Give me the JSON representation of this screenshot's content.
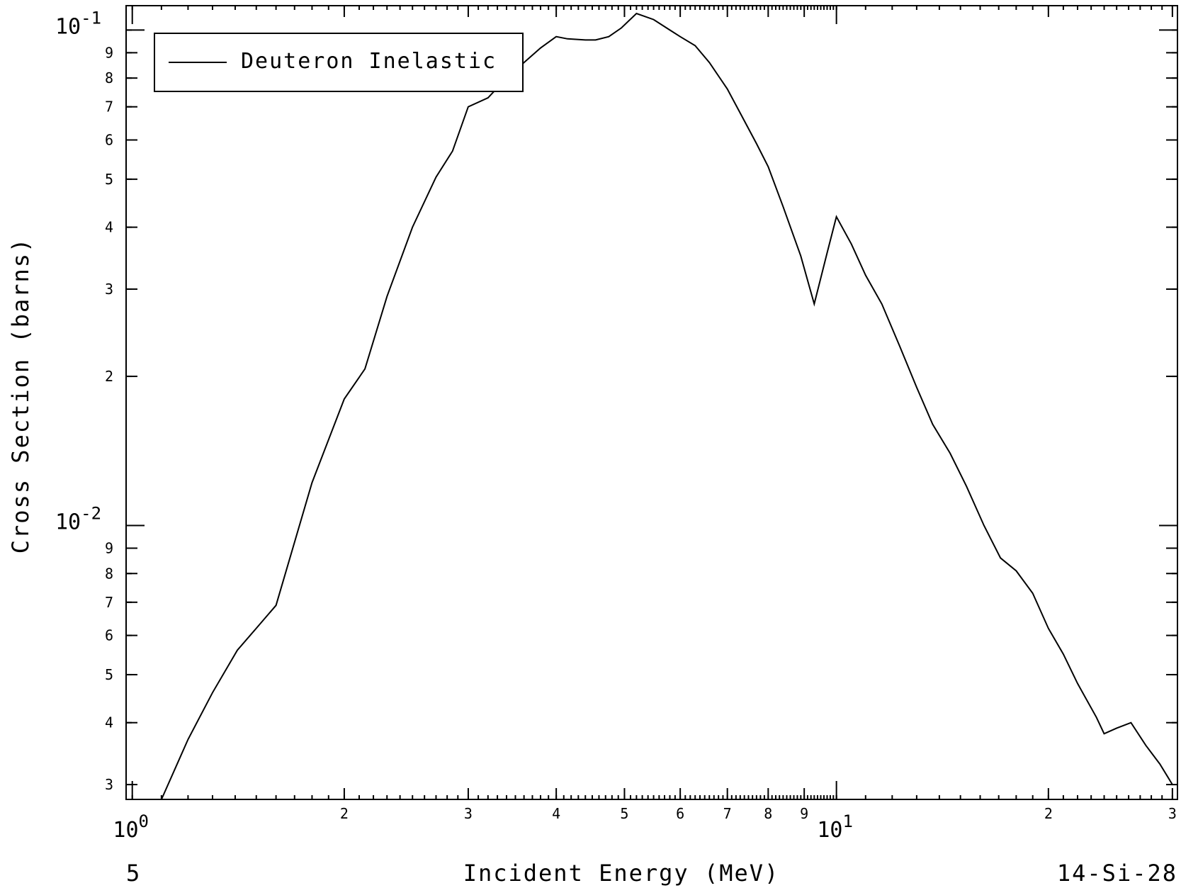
{
  "chart_data": {
    "type": "line",
    "xlabel": "Incident Energy (MeV)",
    "ylabel": "Cross Section (barns)",
    "x_scale": "log",
    "y_scale": "log",
    "xlim": [
      0.98,
      30.5
    ],
    "ylim": [
      0.0028,
      0.112
    ],
    "grid": false,
    "legend_position": "top-left",
    "x_ticks": {
      "major": [
        {
          "value": 1,
          "base": "10",
          "exp": "0"
        },
        {
          "value": 10,
          "base": "10",
          "exp": "1"
        }
      ],
      "minor": [
        {
          "value": 2,
          "label": "2"
        },
        {
          "value": 3,
          "label": "3"
        },
        {
          "value": 4,
          "label": "4"
        },
        {
          "value": 5,
          "label": "5"
        },
        {
          "value": 6,
          "label": "6"
        },
        {
          "value": 7,
          "label": "7"
        },
        {
          "value": 8,
          "label": "8"
        },
        {
          "value": 9,
          "label": "9"
        },
        {
          "value": 20,
          "label": "2"
        },
        {
          "value": 30,
          "label": "3"
        }
      ]
    },
    "y_ticks": {
      "major": [
        {
          "value": 0.1,
          "base": "10",
          "exp": "-1"
        },
        {
          "value": 0.01,
          "base": "10",
          "exp": "-2"
        }
      ],
      "minor": [
        {
          "value": 0.09,
          "label": "9"
        },
        {
          "value": 0.08,
          "label": "8"
        },
        {
          "value": 0.07,
          "label": "7"
        },
        {
          "value": 0.06,
          "label": "6"
        },
        {
          "value": 0.05,
          "label": "5"
        },
        {
          "value": 0.04,
          "label": "4"
        },
        {
          "value": 0.03,
          "label": "3"
        },
        {
          "value": 0.02,
          "label": "2"
        },
        {
          "value": 0.009,
          "label": "9"
        },
        {
          "value": 0.008,
          "label": "8"
        },
        {
          "value": 0.007,
          "label": "7"
        },
        {
          "value": 0.006,
          "label": "6"
        },
        {
          "value": 0.005,
          "label": "5"
        },
        {
          "value": 0.004,
          "label": "4"
        },
        {
          "value": 0.003,
          "label": "3"
        }
      ]
    },
    "series": [
      {
        "name": "Deuteron Inelastic",
        "color": "#000000",
        "x": [
          1.1,
          1.2,
          1.3,
          1.41,
          1.5,
          1.6,
          1.8,
          2.0,
          2.14,
          2.3,
          2.5,
          2.7,
          2.85,
          3.0,
          3.2,
          3.4,
          3.6,
          3.8,
          4.0,
          4.15,
          4.4,
          4.55,
          4.75,
          4.95,
          5.2,
          5.5,
          5.8,
          6.0,
          6.3,
          6.6,
          7.0,
          7.3,
          7.7,
          8.0,
          8.4,
          8.9,
          9.3,
          9.7,
          10.0,
          10.5,
          11.0,
          11.6,
          12.3,
          13.0,
          13.7,
          14.5,
          15.3,
          16.2,
          17.1,
          18.0,
          19.0,
          20.0,
          21.0,
          22.0,
          23.4,
          24.0,
          25.0,
          26.2,
          27.5,
          28.8,
          30.0
        ],
        "y": [
          0.0028,
          0.0037,
          0.0046,
          0.0056,
          0.0062,
          0.0069,
          0.0122,
          0.018,
          0.0207,
          0.029,
          0.04,
          0.0505,
          0.057,
          0.07,
          0.073,
          0.08,
          0.086,
          0.092,
          0.097,
          0.096,
          0.0955,
          0.0955,
          0.097,
          0.101,
          0.108,
          0.105,
          0.1,
          0.097,
          0.093,
          0.086,
          0.076,
          0.068,
          0.059,
          0.053,
          0.044,
          0.035,
          0.028,
          0.0355,
          0.042,
          0.037,
          0.032,
          0.028,
          0.023,
          0.019,
          0.016,
          0.014,
          0.012,
          0.01,
          0.0086,
          0.0081,
          0.0073,
          0.0062,
          0.0055,
          0.0048,
          0.0041,
          0.0038,
          0.0039,
          0.004,
          0.0036,
          0.0033,
          0.003
        ]
      }
    ]
  },
  "footer": {
    "left_label": "5",
    "right_label": "14-Si-28"
  }
}
